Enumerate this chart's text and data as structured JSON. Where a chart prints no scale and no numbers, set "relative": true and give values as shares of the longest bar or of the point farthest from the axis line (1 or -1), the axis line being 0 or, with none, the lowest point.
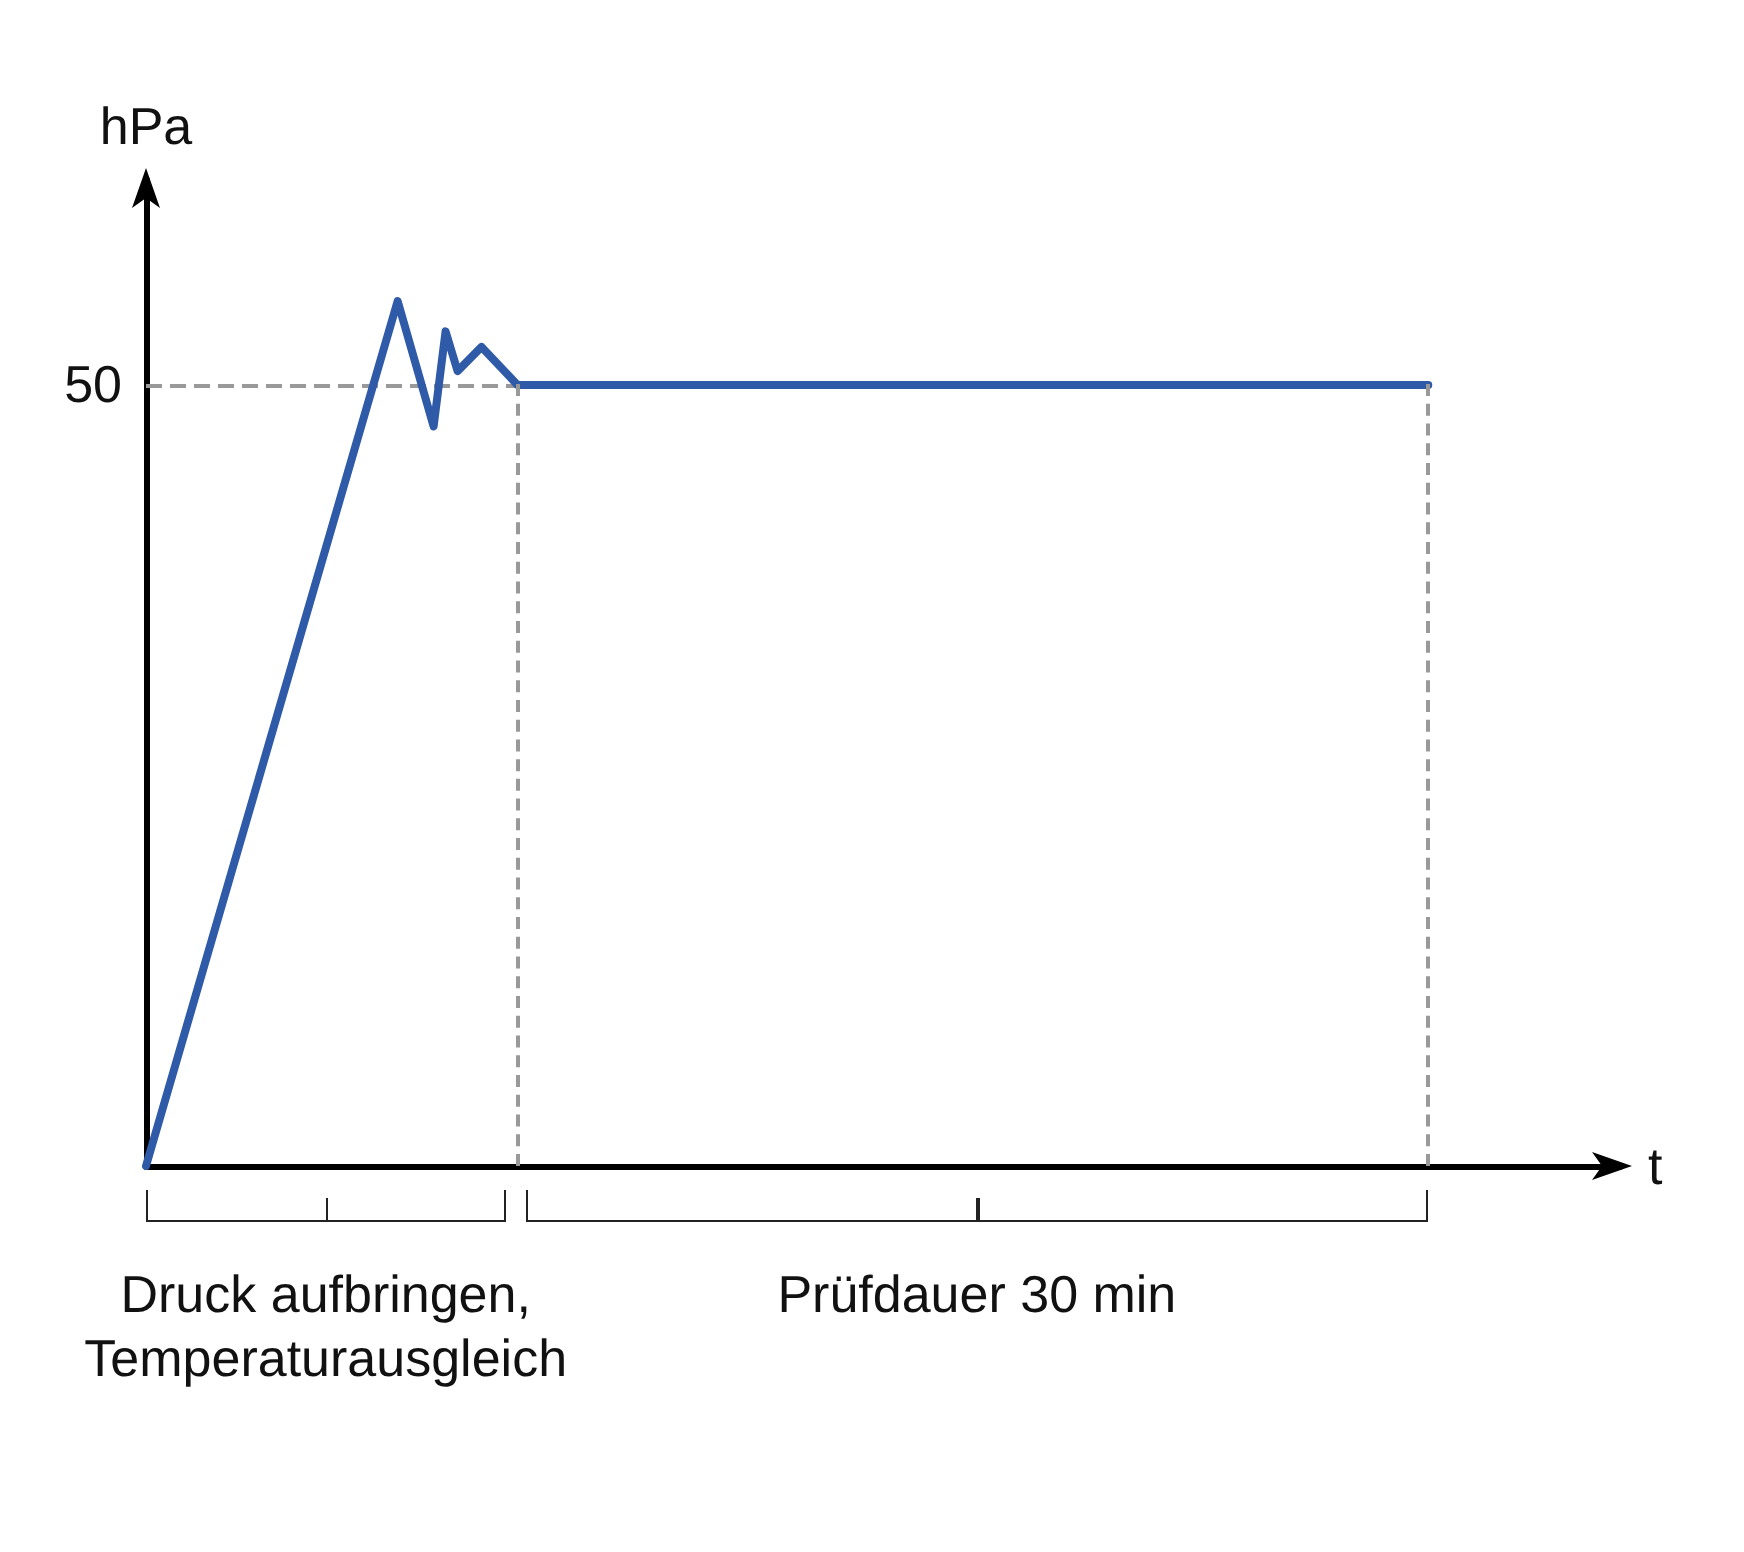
{
  "chart_data": {
    "type": "line",
    "relative": true,
    "xlabel": "t",
    "ylabel": "hPa",
    "categories": [
      null,
      null,
      null,
      null,
      null,
      null,
      null,
      null,
      null,
      null,
      null,
      null,
      null,
      null,
      null,
      null,
      null,
      null,
      null,
      null,
      null,
      null,
      null,
      null,
      null,
      null,
      null,
      null,
      null,
      null,
      null,
      null,
      null,
      null,
      null,
      null,
      null,
      null,
      null,
      null,
      null,
      null,
      null,
      null,
      null,
      null,
      null,
      null,
      null,
      null,
      null,
      null,
      null,
      null,
      null,
      null,
      null,
      null,
      null,
      null,
      null,
      null,
      null,
      null,
      null,
      null,
      null,
      null,
      null,
      null,
      null,
      null,
      null,
      null,
      null,
      null,
      null,
      null,
      null,
      null,
      null,
      null,
      null,
      null,
      null,
      null,
      null,
      null,
      null,
      null,
      null,
      null,
      null,
      null,
      null,
      null,
      null,
      null,
      null,
      null,
      null,
      null,
      null,
      null,
      null,
      null,
      null,
      null,
      null,
      null,
      null,
      null,
      null,
      null,
      null,
      null,
      null,
      null,
      null,
      null,
      null,
      null,
      null,
      null
    ],
    "series": [
      {
        "color": "#2f5aa8",
        "values": [
          0,
          null,
          null,
          null,
          null,
          null,
          null,
          null,
          null,
          null,
          null,
          null,
          null,
          null,
          null,
          null,
          null,
          null,
          null,
          null,
          null,
          1,
          null,
          null,
          0.855,
          0.965,
          0.919,
          null,
          0.947,
          null,
          null,
          0.903,
          null,
          null,
          null,
          null,
          null,
          null,
          null,
          null,
          null,
          null,
          null,
          null,
          null,
          null,
          null,
          null,
          null,
          null,
          null,
          null,
          null,
          null,
          null,
          null,
          null,
          null,
          null,
          null,
          null,
          null,
          null,
          null,
          null,
          null,
          null,
          null,
          null,
          null,
          null,
          null,
          null,
          null,
          null,
          null,
          null,
          null,
          null,
          null,
          null,
          null,
          null,
          null,
          null,
          null,
          null,
          null,
          null,
          null,
          null,
          null,
          null,
          null,
          null,
          null,
          null,
          null,
          null,
          null,
          null,
          null,
          null,
          null,
          null,
          null,
          null,
          0.903,
          null,
          null,
          null,
          null,
          null,
          null,
          null,
          null,
          null,
          null,
          null,
          null,
          null,
          null,
          null,
          null
        ]
      }
    ],
    "grid": false,
    "marker": "none",
    "line_style": "solid",
    "ref_lines": [
      {
        "axis": "y",
        "value": 0.903,
        "color": "#999999",
        "line_style": "dashed"
      }
    ],
    "annotations": [
      "Druck aufbringen, Temperaturausgleich",
      "Prüfdauer 30 min",
      "50"
    ]
  }
}
